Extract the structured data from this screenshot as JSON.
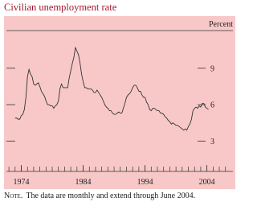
{
  "chart_data": {
    "type": "line",
    "title": "Civilian unemployment rate",
    "y_unit": "Percent",
    "note_label": "Note.",
    "note_text": "The data are monthly and extend through June 2004.",
    "x": [
      1973,
      1973.25,
      1973.5,
      1973.75,
      1974,
      1974.25,
      1974.5,
      1974.75,
      1975,
      1975.25,
      1975.5,
      1975.75,
      1976,
      1976.25,
      1976.5,
      1976.75,
      1977,
      1977.25,
      1977.5,
      1977.75,
      1978,
      1978.25,
      1978.5,
      1978.75,
      1979,
      1979.25,
      1979.5,
      1979.75,
      1980,
      1980.25,
      1980.5,
      1980.75,
      1981,
      1981.25,
      1981.5,
      1981.75,
      1982,
      1982.25,
      1982.5,
      1982.75,
      1983,
      1983.25,
      1983.5,
      1983.75,
      1984,
      1984.25,
      1984.5,
      1984.75,
      1985,
      1985.25,
      1985.5,
      1985.75,
      1986,
      1986.25,
      1986.5,
      1986.75,
      1987,
      1987.25,
      1987.5,
      1987.75,
      1988,
      1988.25,
      1988.5,
      1988.75,
      1989,
      1989.25,
      1989.5,
      1989.75,
      1990,
      1990.25,
      1990.5,
      1990.75,
      1991,
      1991.25,
      1991.5,
      1991.75,
      1992,
      1992.25,
      1992.5,
      1992.75,
      1993,
      1993.25,
      1993.5,
      1993.75,
      1994,
      1994.25,
      1994.5,
      1994.75,
      1995,
      1995.25,
      1995.5,
      1995.75,
      1996,
      1996.25,
      1996.5,
      1996.75,
      1997,
      1997.25,
      1997.5,
      1997.75,
      1998,
      1998.25,
      1998.5,
      1998.75,
      1999,
      1999.25,
      1999.5,
      1999.75,
      2000,
      2000.25,
      2000.5,
      2000.75,
      2001,
      2001.25,
      2001.5,
      2001.75,
      2002,
      2002.25,
      2002.5,
      2002.75,
      2003,
      2003.25,
      2003.5,
      2003.75,
      2004,
      2004.25
    ],
    "series": [
      {
        "color": "#333333",
        "values": [
          4.9,
          4.9,
          4.8,
          4.8,
          5.1,
          5.2,
          5.6,
          6.6,
          8.3,
          8.9,
          8.5,
          8.3,
          7.7,
          7.6,
          7.7,
          7.8,
          7.5,
          7.1,
          6.9,
          6.7,
          6.3,
          6.0,
          6.0,
          5.9,
          5.9,
          5.7,
          5.9,
          6.0,
          6.3,
          7.3,
          7.7,
          7.4,
          7.4,
          7.4,
          7.4,
          8.2,
          8.8,
          9.4,
          9.9,
          10.7,
          10.4,
          10.1,
          9.4,
          8.5,
          7.9,
          7.4,
          7.4,
          7.3,
          7.3,
          7.3,
          7.2,
          7.0,
          7.0,
          7.2,
          7.0,
          6.8,
          6.6,
          6.3,
          6.0,
          5.8,
          5.7,
          5.5,
          5.5,
          5.3,
          5.2,
          5.2,
          5.3,
          5.4,
          5.3,
          5.3,
          5.7,
          6.1,
          6.6,
          6.8,
          6.9,
          7.1,
          7.4,
          7.6,
          7.6,
          7.4,
          7.1,
          7.1,
          6.8,
          6.6,
          6.6,
          6.2,
          6.0,
          5.6,
          5.5,
          5.7,
          5.7,
          5.6,
          5.5,
          5.5,
          5.3,
          5.3,
          5.2,
          5.0,
          4.9,
          4.7,
          4.6,
          4.4,
          4.5,
          4.4,
          4.3,
          4.3,
          4.2,
          4.1,
          4.0,
          3.9,
          4.0,
          3.9,
          4.2,
          4.4,
          4.8,
          5.5,
          5.7,
          5.8,
          5.7,
          5.9,
          5.8,
          6.1,
          6.1,
          5.8,
          5.7,
          5.6
        ]
      }
    ],
    "xlim": [
      1971.6,
      2008.2
    ],
    "xticks": [
      1974,
      1984,
      1994,
      2004
    ],
    "xminorticks": [
      1972,
      1973,
      1974,
      1975,
      1976,
      1977,
      1978,
      1979,
      1980,
      1981,
      1982,
      1983,
      1984,
      1985,
      1986,
      1987,
      1988,
      1989,
      1990,
      1991,
      1992,
      1993,
      1994,
      1995,
      1996,
      1997,
      1998,
      1999,
      2000,
      2001,
      2002,
      2003,
      2004,
      2005,
      2006,
      2007
    ],
    "ylim": [
      0.5,
      12.1
    ],
    "yticks": [
      3,
      6,
      9
    ]
  }
}
